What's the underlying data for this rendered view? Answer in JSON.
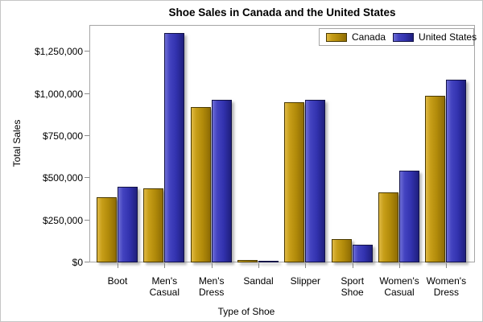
{
  "chart_data": {
    "type": "bar",
    "title": "Shoe Sales in Canada and the United States",
    "xlabel": "Type of Shoe",
    "ylabel": "Total Sales",
    "categories": [
      "Boot",
      "Men's Casual",
      "Men's Dress",
      "Sandal",
      "Slipper",
      "Sport Shoe",
      "Women's Casual",
      "Women's Dress"
    ],
    "series": [
      {
        "name": "Canada",
        "color": "#c79e18",
        "values": [
          385000,
          440000,
          920000,
          15000,
          950000,
          140000,
          415000,
          990000
        ]
      },
      {
        "name": "United States",
        "color": "#3232ae",
        "values": [
          450000,
          1360000,
          965000,
          10000,
          965000,
          105000,
          545000,
          1085000
        ]
      }
    ],
    "yticks": [
      0,
      250000,
      500000,
      750000,
      1000000,
      1250000
    ],
    "ytick_labels": [
      "$0",
      "$250,000",
      "$500,000",
      "$750,000",
      "$1,000,000",
      "$1,250,000"
    ],
    "ylim": [
      0,
      1409000
    ],
    "grid": false,
    "legend_position": "top-right-inside",
    "bar_unit": "USD"
  }
}
